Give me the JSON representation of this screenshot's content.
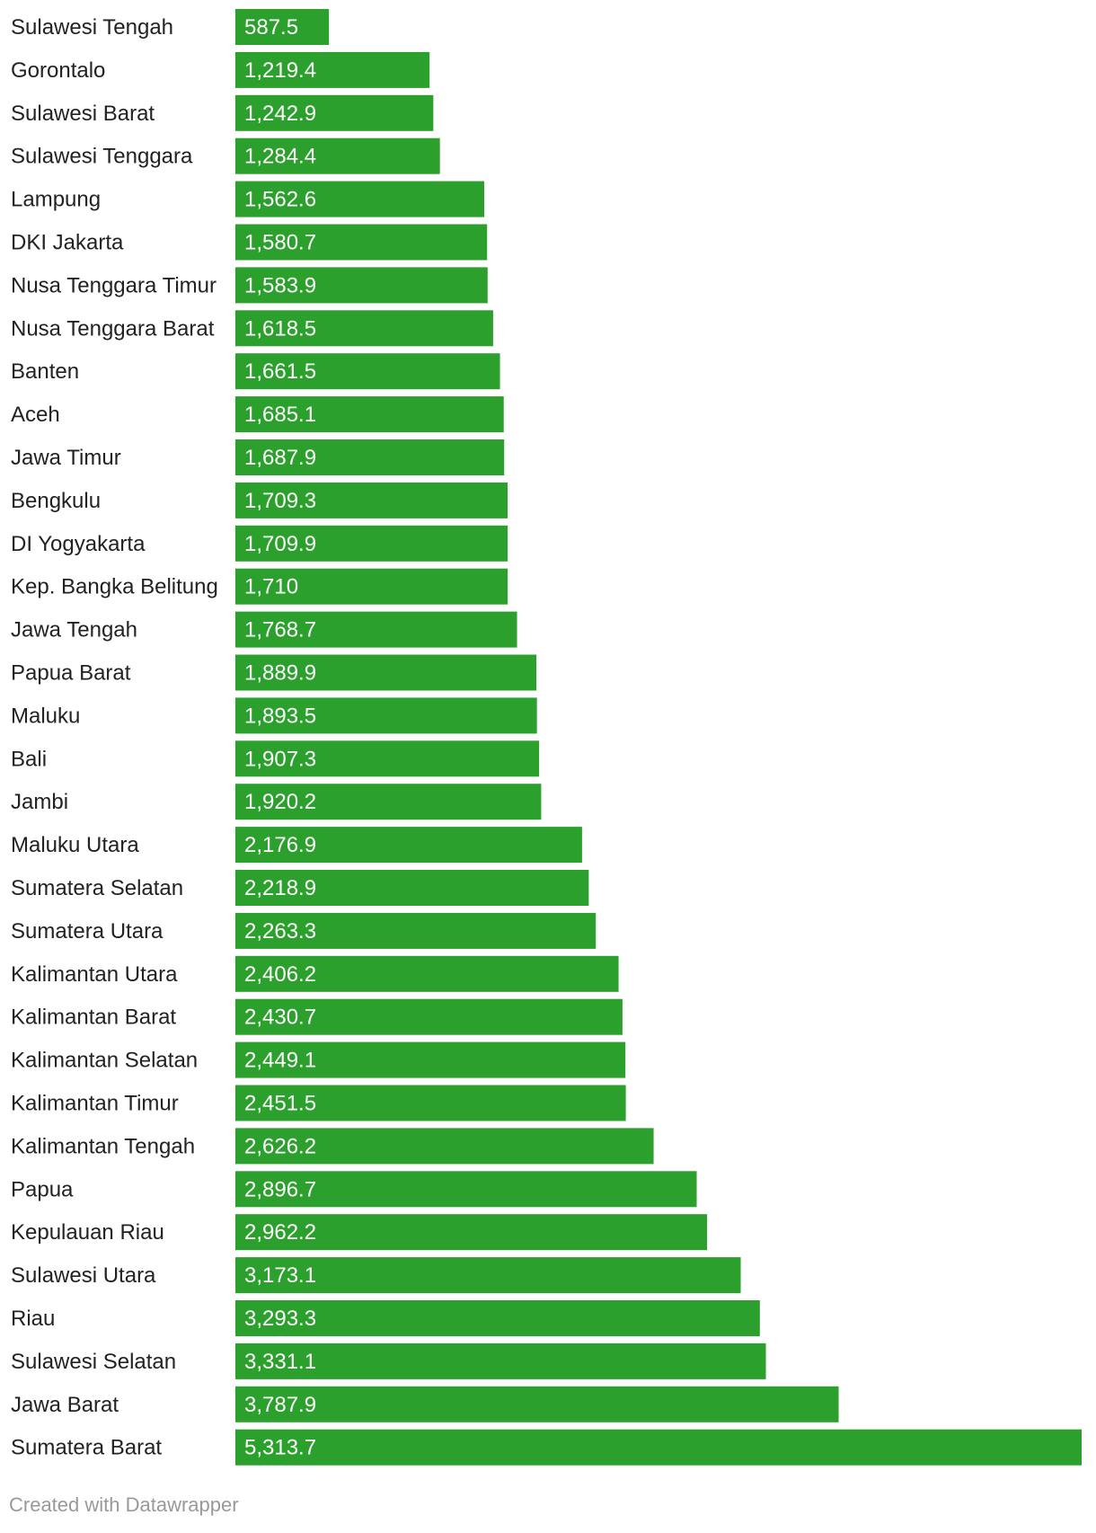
{
  "chart_data": {
    "type": "bar",
    "orientation": "horizontal",
    "title": "",
    "xlabel": "",
    "ylabel": "",
    "bar_color": "#2ca02c",
    "categories": [
      "Sulawesi Tengah",
      "Gorontalo",
      "Sulawesi Barat",
      "Sulawesi Tenggara",
      "Lampung",
      "DKI Jakarta",
      "Nusa Tenggara Timur",
      "Nusa Tenggara Barat",
      "Banten",
      "Aceh",
      "Jawa Timur",
      "Bengkulu",
      "DI Yogyakarta",
      "Kep. Bangka Belitung",
      "Jawa Tengah",
      "Papua Barat",
      "Maluku",
      "Bali",
      "Jambi",
      "Maluku Utara",
      "Sumatera Selatan",
      "Sumatera Utara",
      "Kalimantan Utara",
      "Kalimantan Barat",
      "Kalimantan Selatan",
      "Kalimantan Timur",
      "Kalimantan Tengah",
      "Papua",
      "Kepulauan Riau",
      "Sulawesi Utara",
      "Riau",
      "Sulawesi Selatan",
      "Jawa Barat",
      "Sumatera Barat"
    ],
    "values": [
      587.5,
      1219.4,
      1242.9,
      1284.4,
      1562.6,
      1580.7,
      1583.9,
      1618.5,
      1661.5,
      1685.1,
      1687.9,
      1709.3,
      1709.9,
      1710,
      1768.7,
      1889.9,
      1893.5,
      1907.3,
      1920.2,
      2176.9,
      2218.9,
      2263.3,
      2406.2,
      2430.7,
      2449.1,
      2451.5,
      2626.2,
      2896.7,
      2962.2,
      3173.1,
      3293.3,
      3331.1,
      3787.9,
      5313.7
    ],
    "value_labels": [
      "587.5",
      "1,219.4",
      "1,242.9",
      "1,284.4",
      "1,562.6",
      "1,580.7",
      "1,583.9",
      "1,618.5",
      "1,661.5",
      "1,685.1",
      "1,687.9",
      "1,709.3",
      "1,709.9",
      "1,710",
      "1,768.7",
      "1,889.9",
      "1,893.5",
      "1,907.3",
      "1,920.2",
      "2,176.9",
      "2,218.9",
      "2,263.3",
      "2,406.2",
      "2,430.7",
      "2,449.1",
      "2,451.5",
      "2,626.2",
      "2,896.7",
      "2,962.2",
      "3,173.1",
      "3,293.3",
      "3,331.1",
      "3,787.9",
      "5,313.7"
    ],
    "xlim": [
      0,
      5313.7
    ]
  },
  "footer": {
    "credit": "Created with Datawrapper"
  }
}
